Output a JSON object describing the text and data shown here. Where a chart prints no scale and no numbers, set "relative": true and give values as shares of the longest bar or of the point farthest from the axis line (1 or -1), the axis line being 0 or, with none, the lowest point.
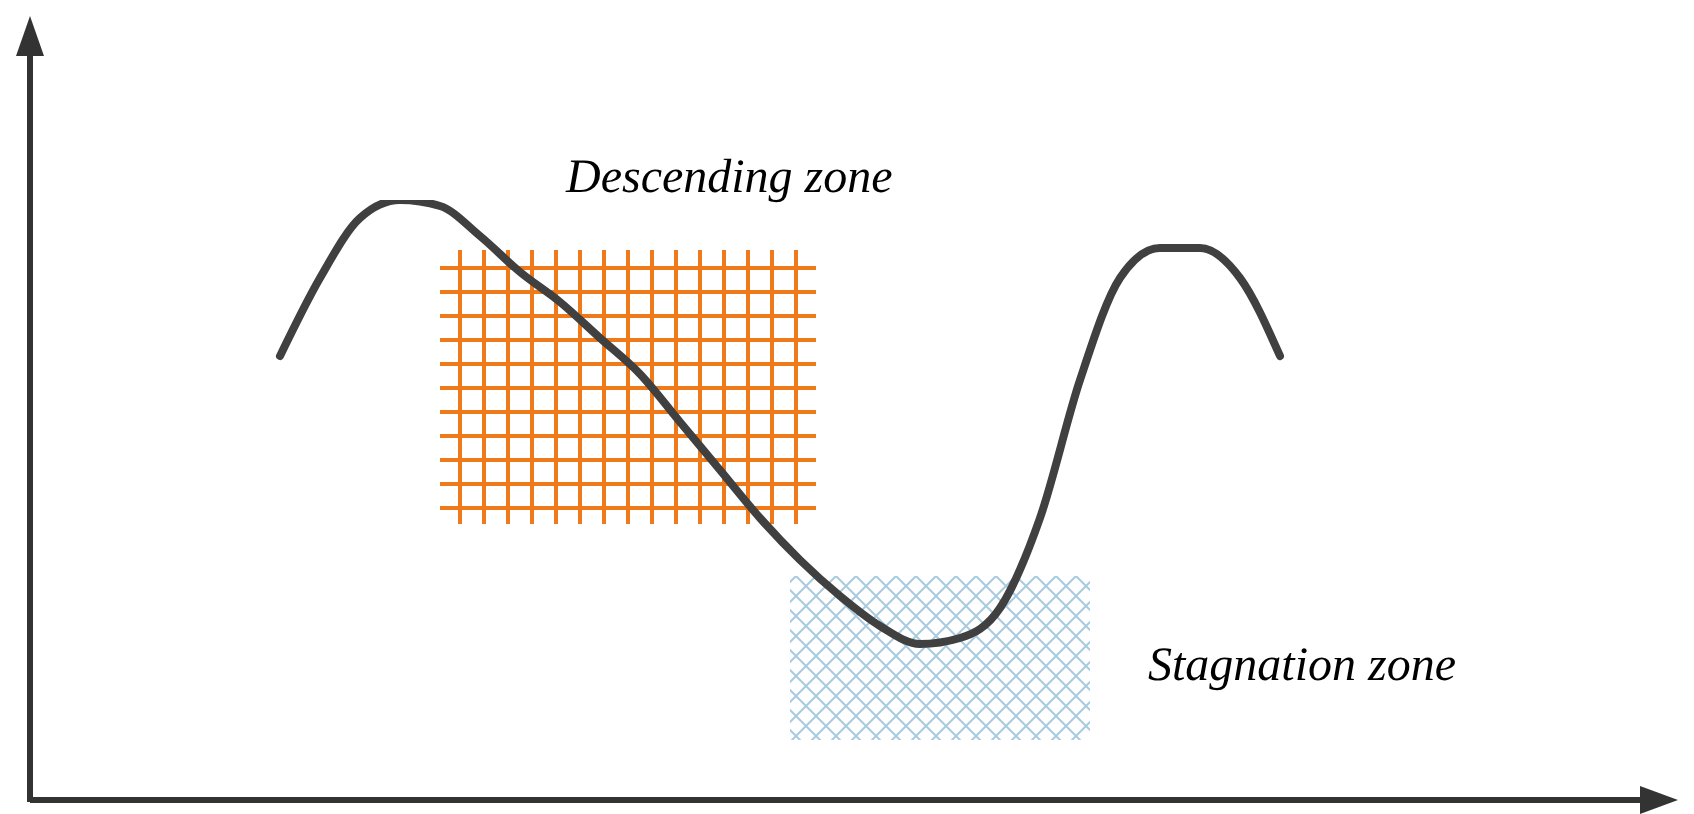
{
  "chart_data": {
    "type": "line",
    "relative": true,
    "categories": [
      null,
      null,
      null,
      null,
      null,
      null,
      null,
      null,
      null,
      null,
      null,
      null,
      null,
      null,
      null,
      null,
      null,
      null,
      null,
      null,
      null,
      null,
      null,
      null,
      null,
      null
    ],
    "series": [
      {
        "color": "#404040",
        "values": [
          0.74,
          0.87,
          0.97,
          1,
          0.99,
          0.94,
          0.88,
          0.83,
          0.77,
          0.71,
          0.63,
          0.55,
          0.47,
          0.4,
          0.34,
          0.29,
          0.26,
          0.27,
          0.32,
          0.47,
          0.7,
          0.87,
          0.92,
          0.92,
          0.87,
          0.74
        ]
      }
    ],
    "annotations": [
      "Descending zone",
      "Stagnation zone"
    ],
    "marker": "none",
    "line_style": "solid"
  }
}
